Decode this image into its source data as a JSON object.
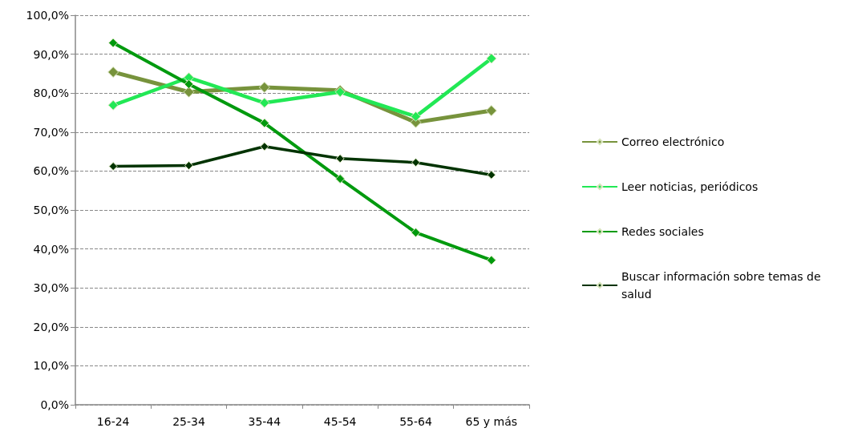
{
  "chart_data": {
    "type": "line",
    "categories": [
      "16-24",
      "25-34",
      "35-44",
      "45-54",
      "55-64",
      "65 y más"
    ],
    "series": [
      {
        "name": "Correo electrónico",
        "color": "#77933c",
        "values": [
          85.4,
          80.3,
          81.5,
          80.7,
          72.5,
          75.5
        ]
      },
      {
        "name": "Leer noticias, periódicos",
        "color": "#22e855",
        "values": [
          76.9,
          84.0,
          77.5,
          80.3,
          74.0,
          88.9
        ]
      },
      {
        "name": "Redes sociales",
        "color": "#009a0e",
        "values": [
          92.9,
          82.3,
          72.3,
          58.0,
          44.2,
          37.1
        ]
      },
      {
        "name": "Buscar información sobre temas de salud",
        "color": "#003300",
        "values": [
          61.2,
          61.4,
          66.3,
          63.2,
          62.2,
          59.0
        ]
      }
    ],
    "ylim": [
      0,
      100
    ],
    "yticks": [
      {
        "value": 0,
        "label": "0,0%"
      },
      {
        "value": 10,
        "label": "10,0%"
      },
      {
        "value": 20,
        "label": "20,0%"
      },
      {
        "value": 30,
        "label": "30,0%"
      },
      {
        "value": 40,
        "label": "40,0%"
      },
      {
        "value": 50,
        "label": "50,0%"
      },
      {
        "value": 60,
        "label": "60,0%"
      },
      {
        "value": 70,
        "label": "70,0%"
      },
      {
        "value": 80,
        "label": "80,0%"
      },
      {
        "value": 90,
        "label": "90,0%"
      },
      {
        "value": 100,
        "label": "100,0%"
      }
    ],
    "grid": "y",
    "legend": "right",
    "marker": "diamond",
    "line_style": "solid"
  }
}
